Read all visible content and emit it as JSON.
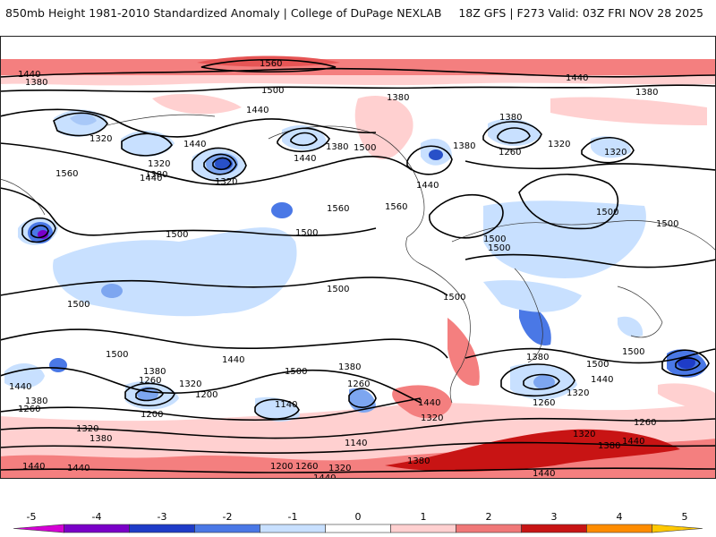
{
  "header": {
    "title": "850mb Height 1981-2010 Standardized Anomaly | College of DuPage NEXLAB",
    "run_info": "18Z GFS | F273 Valid: 03Z FRI NOV 28 2025"
  },
  "contour_labels": {
    "l1440a": "1440",
    "l1380a": "1380",
    "l1560a": "1560",
    "l1500a": "1500",
    "l1440b": "1440",
    "l1440c": "1440",
    "l1380b": "1380",
    "l1380c": "1380",
    "l1320a": "1320",
    "l1320b": "1320",
    "l1380d": "1380",
    "l1320c": "1320",
    "l1440d": "1440",
    "l1380e": "1380",
    "l1500b": "1500",
    "l1560b": "1560",
    "l1440e": "1440",
    "l1380f": "1380",
    "l1260a": "1260",
    "l1320d": "1320",
    "l1320e": "1320",
    "l1380g": "1380",
    "l1440f": "1440",
    "l1560c": "1560",
    "l1560d": "1560",
    "l1500c": "1500",
    "l1500d": "1500",
    "l1500e": "1500",
    "l1500f": "1500",
    "l1500g": "1500",
    "l1500h": "1500",
    "l1500i": "1500",
    "l1500j": "1500",
    "l1500k": "1500",
    "l1500l": "1500",
    "l1500m": "1500",
    "l1500n": "1500",
    "l1500o": "1500",
    "l1440g": "1440",
    "l1380h": "1380",
    "l1260b": "1260",
    "l1320f": "1320",
    "l1200a": "1200",
    "l1200b": "1200",
    "l1140a": "1140",
    "l1380i": "1380",
    "l1260c": "1260",
    "l1440h": "1440",
    "l1320g": "1320",
    "l1380j": "1380",
    "l1260d": "1260",
    "l1320h": "1320",
    "l1440i": "1440",
    "l1260e": "1260",
    "l1320i": "1320",
    "l1380k": "1380",
    "l1440j": "1440",
    "l1440k": "1440",
    "l1380l": "1380",
    "l1260f": "1260",
    "l1320j": "1320",
    "l1380m": "1380",
    "l1140b": "1140",
    "l1200c": "1200",
    "l1260g": "1260",
    "l1320k": "1320",
    "l1440l": "1440",
    "l1440m": "1440",
    "l1440n": "1440",
    "l1380n": "1380",
    "l1440o": "1440",
    "l1440p": "1440"
  },
  "colorbar": {
    "ticks": [
      "-5",
      "-4",
      "-3",
      "-2",
      "-1",
      "0",
      "1",
      "2",
      "3",
      "4",
      "5"
    ],
    "colors": [
      "#d400d4",
      "#7a00c8",
      "#1e3cc8",
      "#4a78e6",
      "#c8e0ff",
      "#ffffff",
      "#ffd0d0",
      "#f07878",
      "#c81414",
      "#ff8c00",
      "#ffc800"
    ]
  }
}
